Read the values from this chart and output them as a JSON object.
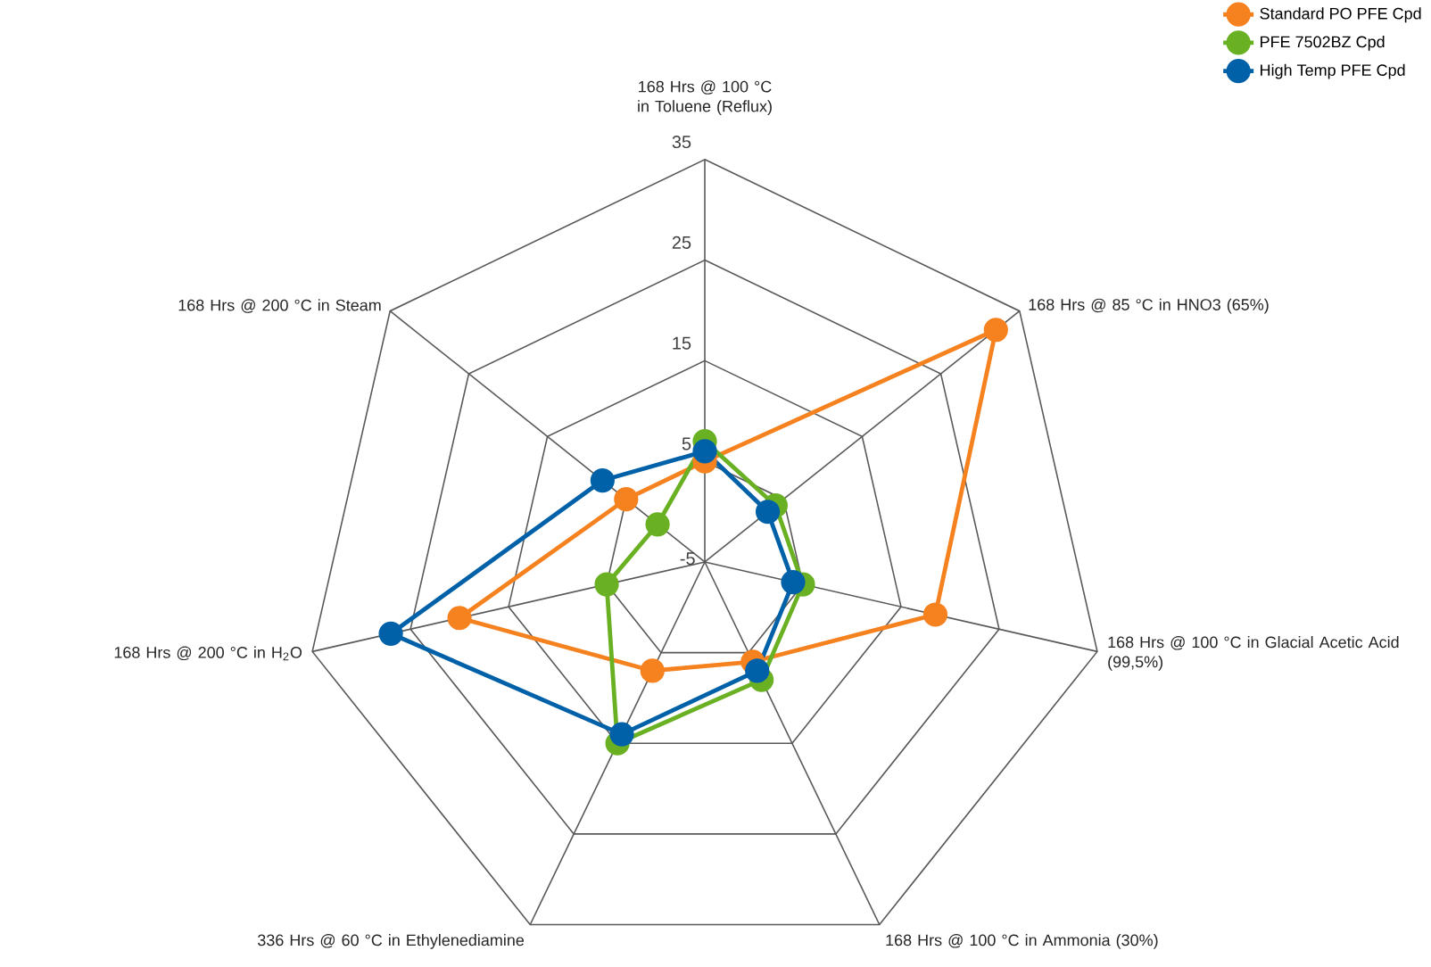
{
  "chart_data": {
    "type": "radar",
    "categories": [
      "168 Hrs @ 100 °C in Toluene (Reflux)",
      "168 Hrs @ 85 °C in HNO3 (65%)",
      "168 Hrs @ 100 °C in Glacial Acetic Acid (99,5%)",
      "168 Hrs @ 100 °C in Ammonia (30%)",
      "336 Hrs @ 60 °C in Ethylenediamine",
      "168 Hrs @ 200 °C in H$_{2}$O",
      "168 Hrs @ 200 °C in Steam"
    ],
    "series": [
      {
        "name": "Standard PO PFE Cpd",
        "color": "#f5821f",
        "values": [
          5,
          32,
          18.5,
          6,
          7,
          20,
          5
        ]
      },
      {
        "name": "PFE 7502BZ Cpd",
        "color": "#6ab023",
        "values": [
          7,
          4,
          5,
          8,
          15,
          5,
          1
        ]
      },
      {
        "name": "High Temp PFE Cpd",
        "color": "#0061a8",
        "values": [
          6,
          3,
          4,
          7,
          14,
          27,
          8
        ]
      }
    ],
    "ylim": [
      -5,
      35
    ],
    "yticks": [
      -5,
      5,
      15,
      25,
      35
    ],
    "grid": true,
    "legend": "top right",
    "marker": "circle",
    "line_style": "solid"
  }
}
